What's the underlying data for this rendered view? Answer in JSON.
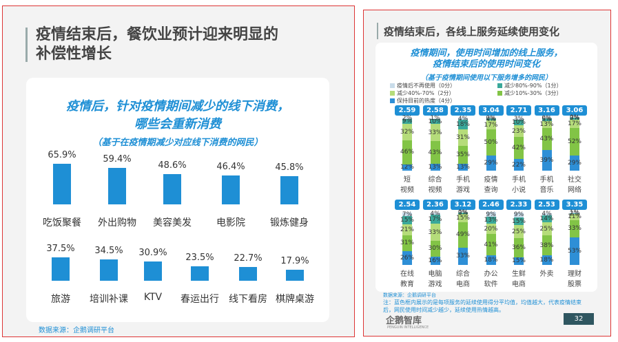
{
  "left_slide": {
    "heading": "疫情结束后，餐饮业预计迎来明显的\n补偿性增长",
    "source": "数据来源：企鹅调研平台"
  },
  "right_slide": {
    "heading": "疫情结束后，各线上服务延续使用变化",
    "source": "数据来源：企鹅调研平台",
    "note": "注：蓝色框内展示的是每项服务的延续使用得分平均值，均值越大，代表疫情结束后，网民使用时间减少越少，延续使用热情越高。",
    "brand": "企鹅智库",
    "brand_subtitle": "PENGUIN INTELLIGENCE",
    "page": 32
  },
  "chart_data": [
    {
      "type": "bar",
      "title": "疫情后，针对疫情期间减少的线下消费，\n哪些会重新消费",
      "subtitle": "（基于在疫情期减少对应线下消费的网民）",
      "categories": [
        "吃饭聚餐",
        "外出购物",
        "美容美发",
        "电影院",
        "锻炼健身",
        "旅游",
        "培训补课",
        "KTV",
        "春运出行",
        "线下看房",
        "棋牌桌游"
      ],
      "values": [
        65.9,
        59.4,
        48.6,
        46.4,
        45.8,
        37.5,
        34.5,
        30.9,
        23.5,
        22.7,
        17.9
      ],
      "value_labels": [
        "65.9%",
        "59.4%",
        "48.6%",
        "46.4%",
        "45.8%",
        "37.5%",
        "34.5%",
        "30.9%",
        "23.5%",
        "22.7%",
        "17.9%"
      ],
      "color": "#1e8fd5"
    },
    {
      "type": "stacked_bar",
      "title": "疫情期间，使用时间增加的线上服务，\n疫情结束后的使用时间变化",
      "subtitle": "（基于疫情期间使用以下服务增多的网民）",
      "categories": [
        "短\n视频",
        "综合\n视频",
        "手机\n游戏",
        "疫情\n查询",
        "手机\n小说",
        "手机\n音乐",
        "社交\n网络",
        "在线\n教育",
        "电脑\n游戏",
        "综合\n电商",
        "办公\n软件",
        "生鲜\n电商",
        "外卖",
        "理财\n股票"
      ],
      "scores": [
        2.59,
        2.58,
        2.35,
        3.04,
        2.71,
        3.16,
        3.06,
        2.54,
        2.36,
        3.12,
        2.46,
        2.33,
        2.53,
        3.35
      ],
      "series": [
        {
          "name": "疫情后不再使用（0分）",
          "color": "#c9dcea",
          "values": [
            2,
            1,
            4,
            0,
            3,
            0,
            0,
            7,
            4,
            0,
            9,
            9,
            4,
            1
          ],
          "value_labels": [
            "2%",
            "1%",
            "4%",
            "0%",
            "3%",
            "0%",
            "0%",
            "7%",
            "4%",
            "0%",
            "9%",
            "9%",
            "4%",
            "1%"
          ]
        },
        {
          "name": "减少80%-90%（1分）",
          "color": "#3aa89a",
          "values": [
            9,
            10,
            18,
            4,
            10,
            5,
            3,
            15,
            17,
            3,
            13,
            15,
            14,
            2
          ],
          "value_labels": [
            "9%",
            "10%",
            "18%",
            "4%",
            "10%",
            "5%",
            "3%",
            "15%",
            "17%",
            "3%",
            "13%",
            "15%",
            "14%",
            "2%"
          ]
        },
        {
          "name": "减少40%-70%（2分）",
          "color": "#b5dc7a",
          "values": [
            32,
            33,
            31,
            17,
            23,
            13,
            17,
            21,
            33,
            15,
            20,
            25,
            25,
            11
          ],
          "value_labels": [
            "32%",
            "33%",
            "31%",
            "17%",
            "23%",
            "13%",
            "17%",
            "21%",
            "33%",
            "15%",
            "20%",
            "25%",
            "25%",
            "11%"
          ]
        },
        {
          "name": "减少10%-30%（3分）",
          "color": "#82c446",
          "values": [
            46,
            43,
            35,
            50,
            42,
            43,
            52,
            31,
            30,
            49,
            41,
            36,
            38,
            33
          ],
          "value_labels": [
            "46%",
            "43%",
            "35%",
            "50%",
            "42%",
            "43%",
            "52%",
            "31%",
            "30%",
            "49%",
            "41%",
            "36%",
            "38%",
            "33%"
          ]
        },
        {
          "name": "保持目前的热度（4分）",
          "color": "#2e8fd6",
          "values": [
            12,
            13,
            13,
            29,
            22,
            39,
            29,
            26,
            16,
            33,
            18,
            15,
            18,
            53
          ],
          "value_labels": [
            "12%",
            "13%",
            "13%",
            "29%",
            "22%",
            "39%",
            "29%",
            "26%",
            "16%",
            "33%",
            "18%",
            "15%",
            "18%",
            "53%"
          ]
        }
      ]
    }
  ]
}
